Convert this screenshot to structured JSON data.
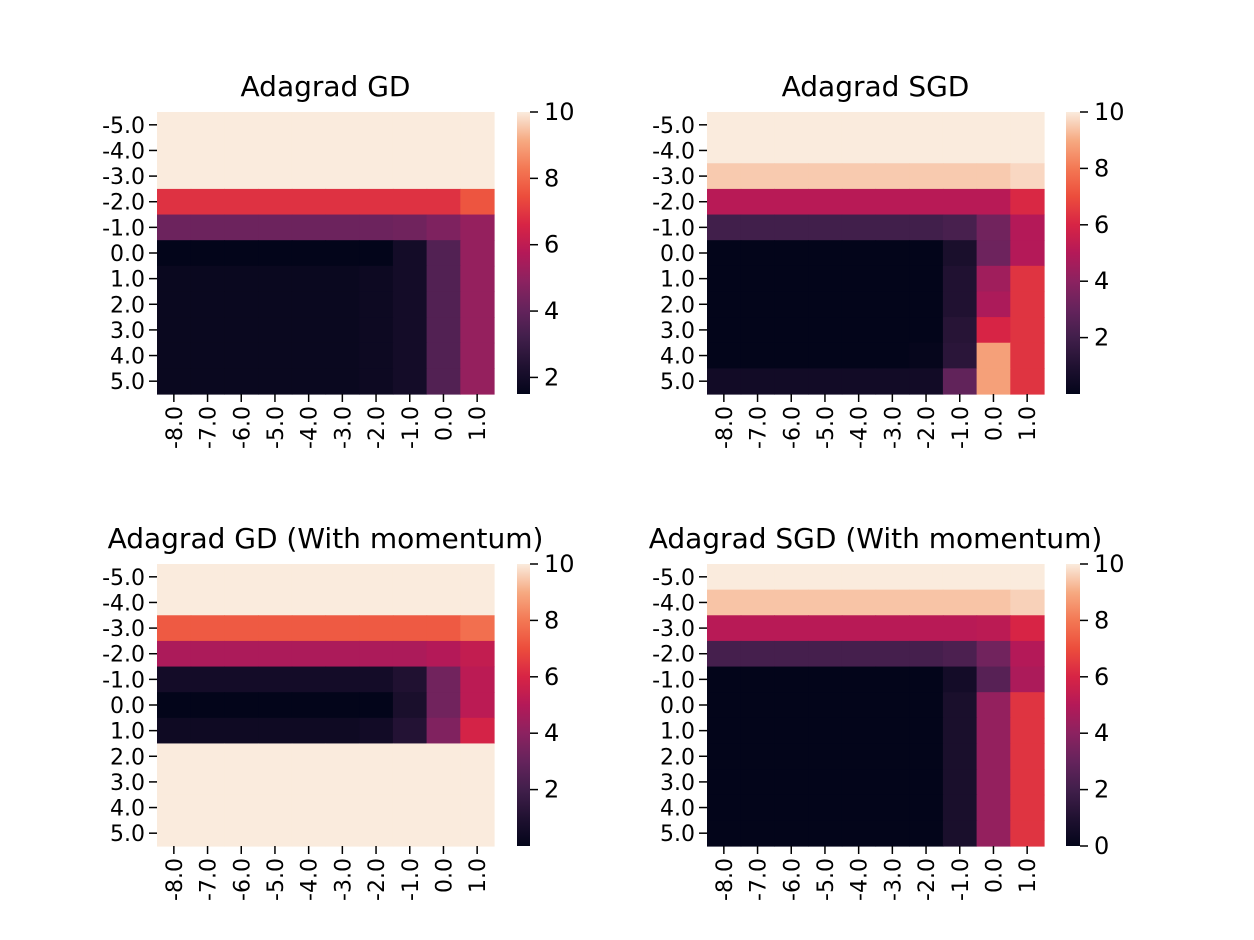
{
  "chart_data": [
    {
      "type": "heatmap",
      "title": "Adagrad GD",
      "x_tick_labels": [
        "-8.0",
        "-7.0",
        "-6.0",
        "-5.0",
        "-4.0",
        "-3.0",
        "-2.0",
        "-1.0",
        "0.0",
        "1.0"
      ],
      "y_tick_labels": [
        "-5.0",
        "-4.0",
        "-3.0",
        "-2.0",
        "-1.0",
        "0.0",
        "1.0",
        "2.0",
        "3.0",
        "4.0",
        "5.0"
      ],
      "colorbar": {
        "vmin": 1.5,
        "vmax": 10,
        "ticks": [
          "2",
          "4",
          "6",
          "8",
          "10"
        ]
      },
      "values": [
        [
          10,
          10,
          10,
          10,
          10,
          10,
          10,
          10,
          10,
          10
        ],
        [
          10,
          10,
          10,
          10,
          10,
          10,
          10,
          10,
          10,
          10
        ],
        [
          10,
          10,
          10,
          10,
          10,
          10,
          10,
          10,
          10,
          10
        ],
        [
          6.9,
          6.9,
          6.9,
          6.9,
          6.9,
          6.9,
          6.9,
          6.9,
          6.9,
          7.6
        ],
        [
          4.2,
          4.2,
          4.2,
          4.2,
          4.2,
          4.2,
          4.2,
          4.3,
          4.6,
          5.1
        ],
        [
          1.5,
          1.5,
          1.5,
          1.5,
          1.5,
          1.5,
          1.5,
          2.0,
          3.6,
          5.1
        ],
        [
          1.7,
          1.7,
          1.7,
          1.7,
          1.7,
          1.7,
          1.8,
          2.0,
          3.6,
          5.1
        ],
        [
          1.7,
          1.7,
          1.7,
          1.7,
          1.7,
          1.7,
          1.8,
          2.0,
          3.6,
          5.1
        ],
        [
          1.7,
          1.7,
          1.7,
          1.7,
          1.7,
          1.7,
          1.8,
          2.0,
          3.6,
          5.1
        ],
        [
          1.7,
          1.7,
          1.7,
          1.7,
          1.7,
          1.7,
          1.8,
          2.0,
          3.6,
          5.1
        ],
        [
          1.7,
          1.7,
          1.7,
          1.7,
          1.7,
          1.7,
          1.8,
          2.0,
          3.6,
          5.1
        ]
      ]
    },
    {
      "type": "heatmap",
      "title": "Adagrad SGD",
      "x_tick_labels": [
        "-8.0",
        "-7.0",
        "-6.0",
        "-5.0",
        "-4.0",
        "-3.0",
        "-2.0",
        "-1.0",
        "0.0",
        "1.0"
      ],
      "y_tick_labels": [
        "-5.0",
        "-4.0",
        "-3.0",
        "-2.0",
        "-1.0",
        "0.0",
        "1.0",
        "2.0",
        "3.0",
        "4.0",
        "5.0"
      ],
      "colorbar": {
        "vmin": 0,
        "vmax": 10,
        "ticks": [
          "2",
          "4",
          "6",
          "8",
          "10"
        ]
      },
      "values": [
        [
          10,
          10,
          10,
          10,
          10,
          10,
          10,
          10,
          10,
          10
        ],
        [
          10,
          10,
          10,
          10,
          10,
          10,
          10,
          10,
          10,
          10
        ],
        [
          9.5,
          9.5,
          9.5,
          9.5,
          9.5,
          9.5,
          9.5,
          9.5,
          9.5,
          9.7
        ],
        [
          5.1,
          5.1,
          5.1,
          5.1,
          5.1,
          5.1,
          5.1,
          5.1,
          5.1,
          6.1
        ],
        [
          2.0,
          2.0,
          2.0,
          2.0,
          2.0,
          2.0,
          2.0,
          2.2,
          3.3,
          5.0
        ],
        [
          0,
          0,
          0,
          0,
          0,
          0,
          0,
          0.8,
          3.2,
          5.0
        ],
        [
          0,
          0,
          0,
          0,
          0,
          0,
          0,
          1.0,
          4.5,
          6.4
        ],
        [
          0,
          0,
          0,
          0,
          0,
          0,
          0,
          1.0,
          4.8,
          6.4
        ],
        [
          0,
          0,
          0,
          0,
          0,
          0,
          0,
          1.2,
          6.0,
          6.4
        ],
        [
          0,
          0,
          0,
          0,
          0,
          0,
          0.1,
          1.3,
          8.8,
          6.4
        ],
        [
          0.5,
          0.5,
          0.5,
          0.5,
          0.5,
          0.5,
          0.5,
          2.9,
          8.8,
          6.4
        ]
      ]
    },
    {
      "type": "heatmap",
      "title": "Adagrad GD (With momentum)",
      "x_tick_labels": [
        "-8.0",
        "-7.0",
        "-6.0",
        "-5.0",
        "-4.0",
        "-3.0",
        "-2.0",
        "-1.0",
        "0.0",
        "1.0"
      ],
      "y_tick_labels": [
        "-5.0",
        "-4.0",
        "-3.0",
        "-2.0",
        "-1.0",
        "0.0",
        "1.0",
        "2.0",
        "3.0",
        "4.0",
        "5.0"
      ],
      "colorbar": {
        "vmin": 0,
        "vmax": 10,
        "ticks": [
          "2",
          "4",
          "6",
          "8",
          "10"
        ]
      },
      "values": [
        [
          10,
          10,
          10,
          10,
          10,
          10,
          10,
          10,
          10,
          10
        ],
        [
          10,
          10,
          10,
          10,
          10,
          10,
          10,
          10,
          10,
          10
        ],
        [
          7.3,
          7.3,
          7.3,
          7.3,
          7.3,
          7.3,
          7.3,
          7.3,
          7.3,
          7.8
        ],
        [
          4.8,
          4.8,
          4.8,
          4.8,
          4.8,
          4.8,
          4.8,
          4.8,
          5.0,
          5.4
        ],
        [
          0.6,
          0.6,
          0.6,
          0.6,
          0.6,
          0.6,
          0.6,
          1.0,
          3.3,
          5.2
        ],
        [
          0,
          0,
          0,
          0,
          0,
          0,
          0,
          0.8,
          3.3,
          5.2
        ],
        [
          0.4,
          0.4,
          0.4,
          0.4,
          0.4,
          0.4,
          0.5,
          1.1,
          3.7,
          5.9
        ],
        [
          10,
          10,
          10,
          10,
          10,
          10,
          10,
          10,
          10,
          10
        ],
        [
          10,
          10,
          10,
          10,
          10,
          10,
          10,
          10,
          10,
          10
        ],
        [
          10,
          10,
          10,
          10,
          10,
          10,
          10,
          10,
          10,
          10
        ],
        [
          10,
          10,
          10,
          10,
          10,
          10,
          10,
          10,
          10,
          10
        ]
      ]
    },
    {
      "type": "heatmap",
      "title": "Adagrad SGD (With momentum)",
      "x_tick_labels": [
        "-8.0",
        "-7.0",
        "-6.0",
        "-5.0",
        "-4.0",
        "-3.0",
        "-2.0",
        "-1.0",
        "0.0",
        "1.0"
      ],
      "y_tick_labels": [
        "-5.0",
        "-4.0",
        "-3.0",
        "-2.0",
        "-1.0",
        "0.0",
        "1.0",
        "2.0",
        "3.0",
        "4.0",
        "5.0"
      ],
      "colorbar": {
        "vmin": 0,
        "vmax": 10,
        "ticks": [
          "0",
          "2",
          "4",
          "6",
          "8",
          "10"
        ]
      },
      "values": [
        [
          10,
          10,
          10,
          10,
          10,
          10,
          10,
          10,
          10,
          10
        ],
        [
          9.4,
          9.4,
          9.4,
          9.4,
          9.4,
          9.4,
          9.4,
          9.4,
          9.4,
          9.6
        ],
        [
          5.1,
          5.1,
          5.1,
          5.1,
          5.1,
          5.1,
          5.1,
          5.1,
          5.2,
          6.0
        ],
        [
          2.1,
          2.1,
          2.1,
          2.1,
          2.1,
          2.1,
          2.1,
          2.3,
          3.3,
          5.0
        ],
        [
          0,
          0,
          0,
          0,
          0,
          0,
          0,
          0.6,
          2.6,
          4.8
        ],
        [
          0,
          0,
          0,
          0,
          0,
          0,
          0,
          0.8,
          4.2,
          6.4
        ],
        [
          0,
          0,
          0,
          0,
          0,
          0,
          0,
          0.8,
          4.2,
          6.4
        ],
        [
          0,
          0,
          0,
          0,
          0,
          0,
          0,
          0.8,
          4.2,
          6.4
        ],
        [
          0,
          0,
          0,
          0,
          0,
          0,
          0,
          0.8,
          4.2,
          6.4
        ],
        [
          0,
          0,
          0,
          0,
          0,
          0,
          0,
          0.8,
          4.2,
          6.4
        ],
        [
          0,
          0,
          0,
          0,
          0,
          0,
          0,
          0.8,
          4.2,
          6.4
        ]
      ]
    }
  ]
}
